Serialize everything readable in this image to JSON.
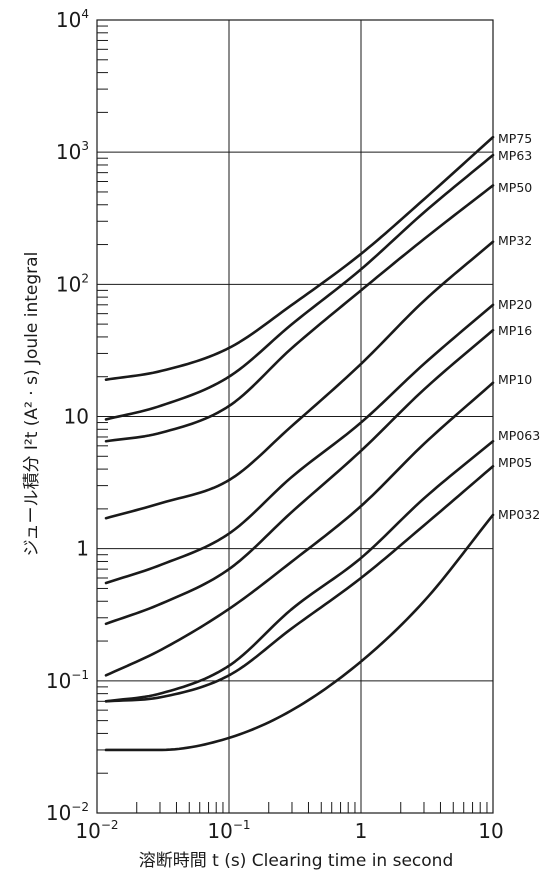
{
  "chart_data": {
    "type": "line",
    "xlabel": "溶断時間 t (s)  Clearing time in second",
    "ylabel": "ジュール積分 I²t (A² · s) Joule integral",
    "x_scale": "log",
    "y_scale": "log",
    "xlim": [
      0.01,
      10
    ],
    "ylim": [
      0.01,
      10000
    ],
    "grid": true,
    "x_ticks": [
      {
        "value": 0.01,
        "base": "10",
        "exp": "−2"
      },
      {
        "value": 0.1,
        "base": "10",
        "exp": "−1"
      },
      {
        "value": 1,
        "base": "1",
        "exp": ""
      },
      {
        "value": 10,
        "base": "10",
        "exp": ""
      }
    ],
    "y_ticks": [
      {
        "value": 0.01,
        "base": "10",
        "exp": "−2"
      },
      {
        "value": 0.1,
        "base": "10",
        "exp": "−1"
      },
      {
        "value": 1,
        "base": "1",
        "exp": ""
      },
      {
        "value": 10,
        "base": "10",
        "exp": ""
      },
      {
        "value": 100,
        "base": "10",
        "exp": "2"
      },
      {
        "value": 1000,
        "base": "10",
        "exp": "3"
      },
      {
        "value": 10000,
        "base": "10",
        "exp": "4"
      }
    ],
    "series": [
      {
        "name": "MP75",
        "x": [
          0.0117,
          0.03,
          0.1,
          0.3,
          1,
          3,
          10
        ],
        "y": [
          19,
          22,
          33,
          70,
          170,
          440,
          1300
        ]
      },
      {
        "name": "MP63",
        "x": [
          0.0117,
          0.03,
          0.1,
          0.3,
          1,
          3,
          10
        ],
        "y": [
          9.5,
          12,
          20,
          50,
          130,
          350,
          950
        ]
      },
      {
        "name": "MP50",
        "x": [
          0.0117,
          0.03,
          0.1,
          0.3,
          1,
          3,
          10
        ],
        "y": [
          6.5,
          7.5,
          12,
          33,
          90,
          220,
          560
        ]
      },
      {
        "name": "MP32",
        "x": [
          0.0117,
          0.03,
          0.1,
          0.3,
          1,
          3,
          10
        ],
        "y": [
          1.7,
          2.2,
          3.3,
          8.5,
          25,
          75,
          210
        ]
      },
      {
        "name": "MP20",
        "x": [
          0.0117,
          0.03,
          0.1,
          0.3,
          1,
          3,
          10
        ],
        "y": [
          0.55,
          0.75,
          1.3,
          3.5,
          9,
          25,
          70
        ]
      },
      {
        "name": "MP16",
        "x": [
          0.0117,
          0.03,
          0.1,
          0.3,
          1,
          3,
          10
        ],
        "y": [
          0.27,
          0.38,
          0.7,
          1.9,
          5.5,
          16,
          45
        ]
      },
      {
        "name": "MP10",
        "x": [
          0.0117,
          0.03,
          0.1,
          0.3,
          1,
          3,
          10
        ],
        "y": [
          0.11,
          0.17,
          0.35,
          0.8,
          2.1,
          6.2,
          18
        ]
      },
      {
        "name": "MP063",
        "x": [
          0.0117,
          0.03,
          0.1,
          0.3,
          1,
          3,
          10
        ],
        "y": [
          0.07,
          0.08,
          0.13,
          0.35,
          0.85,
          2.4,
          6.5
        ]
      },
      {
        "name": "MP05",
        "x": [
          0.0117,
          0.03,
          0.1,
          0.3,
          1,
          3,
          10
        ],
        "y": [
          0.07,
          0.075,
          0.11,
          0.25,
          0.6,
          1.5,
          4.2
        ]
      },
      {
        "name": "MP032",
        "x": [
          0.0117,
          0.03,
          0.1,
          0.3,
          1,
          3,
          10
        ],
        "y": [
          0.03,
          0.03,
          0.037,
          0.06,
          0.14,
          0.4,
          1.8
        ]
      }
    ]
  }
}
